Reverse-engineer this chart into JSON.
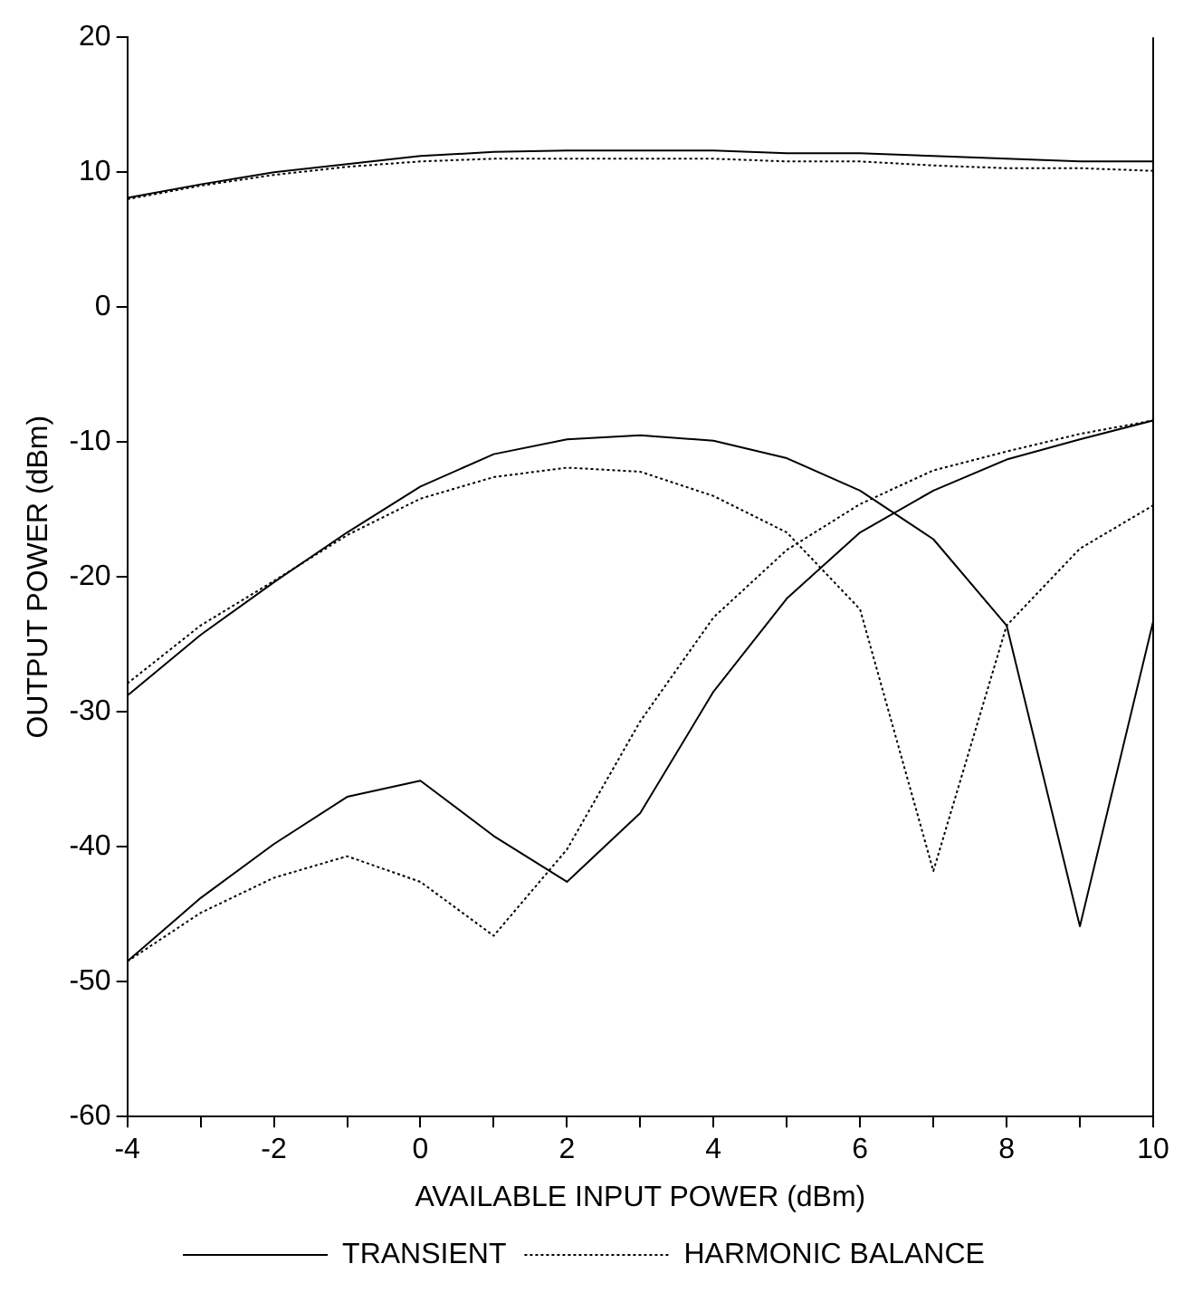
{
  "chart_data": {
    "type": "line",
    "xlabel": "AVAILABLE INPUT POWER (dBm)",
    "ylabel": "OUTPUT POWER (dBm)",
    "x": [
      -4,
      -3,
      -2,
      -1,
      0,
      1,
      2,
      3,
      4,
      5,
      6,
      7,
      8,
      9,
      10
    ],
    "series": [
      {
        "name": "TRANSIENT",
        "color": "#000000",
        "line_style": "solid",
        "values": [
          8.1,
          9.1,
          10.0,
          10.6,
          11.2,
          11.5,
          11.6,
          11.6,
          11.6,
          11.4,
          11.4,
          11.2,
          11.0,
          10.8,
          10.8
        ]
      },
      {
        "color": "#000000",
        "line_style": "solid",
        "values": [
          -28.8,
          -24.3,
          -20.4,
          -16.7,
          -13.3,
          -10.9,
          -9.8,
          -9.5,
          -9.9,
          -11.2,
          -13.6,
          -17.2,
          -23.6,
          -45.9,
          -23.3
        ]
      },
      {
        "color": "#000000",
        "line_style": "solid",
        "values": [
          -48.5,
          -43.8,
          -39.8,
          -36.3,
          -35.1,
          -39.2,
          -42.6,
          -37.5,
          -28.5,
          -21.6,
          -16.7,
          -13.6,
          -11.3,
          -9.8,
          -8.4
        ]
      },
      {
        "name": "HARMONIC BALANCE",
        "color": "#000000",
        "line_style": "dotted",
        "values": [
          8.0,
          9.0,
          9.8,
          10.4,
          10.8,
          11.0,
          11.0,
          11.0,
          11.0,
          10.8,
          10.8,
          10.5,
          10.3,
          10.3,
          10.1
        ]
      },
      {
        "color": "#000000",
        "line_style": "dotted",
        "values": [
          -27.9,
          -23.6,
          -20.3,
          -16.9,
          -14.2,
          -12.6,
          -11.9,
          -12.2,
          -14.0,
          -16.7,
          -22.4,
          -41.8,
          -23.6,
          -17.9,
          -14.7
        ]
      },
      {
        "color": "#000000",
        "line_style": "dotted",
        "values": [
          -48.5,
          -44.9,
          -42.3,
          -40.7,
          -42.6,
          -46.6,
          -40.2,
          -30.7,
          -23.0,
          -18.0,
          -14.6,
          -12.1,
          -10.7,
          -9.4,
          -8.4
        ]
      }
    ],
    "xlim": [
      -4,
      10
    ],
    "xticks": [
      -4,
      {
        "value": -3,
        "label": null
      },
      -2,
      {
        "value": -1,
        "label": null
      },
      0,
      {
        "value": 1,
        "label": null
      },
      2,
      {
        "value": 3,
        "label": null
      },
      4,
      {
        "value": 5,
        "label": null
      },
      6,
      {
        "value": 7,
        "label": null
      },
      8,
      {
        "value": 9,
        "label": null
      },
      10
    ],
    "ylim": [
      -60,
      20
    ],
    "yticks": [
      -60,
      -50,
      -40,
      -30,
      -20,
      -10,
      0,
      10,
      20
    ],
    "grid": false,
    "legend": "bottom",
    "marker": "none"
  }
}
